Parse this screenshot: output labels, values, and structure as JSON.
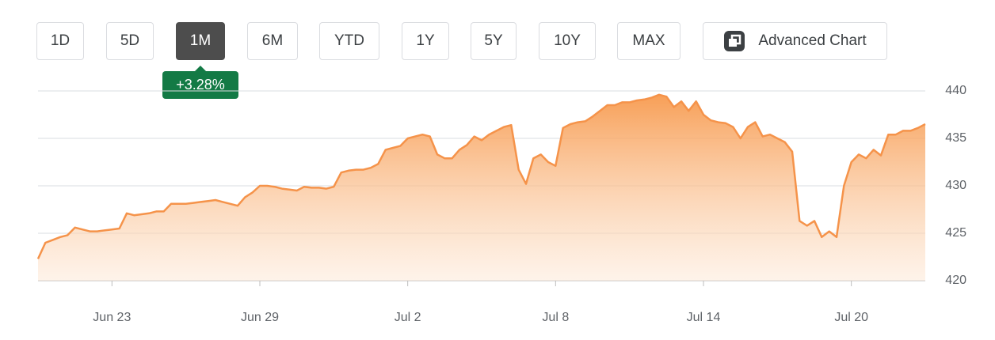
{
  "controls": {
    "ranges": [
      "1D",
      "5D",
      "1M",
      "6M",
      "YTD",
      "1Y",
      "5Y",
      "10Y",
      "MAX"
    ],
    "selected_index": 2,
    "advanced_label": "Advanced Chart"
  },
  "change_badge": "+3.28%",
  "chart_data": {
    "type": "area",
    "color": "#f5934a",
    "x": [
      0,
      1,
      2,
      3,
      4,
      5,
      6,
      7,
      8,
      9,
      10,
      11,
      12,
      13,
      14,
      15,
      16,
      17,
      18,
      19,
      20,
      21,
      22,
      23,
      24,
      25,
      26,
      27,
      28,
      29,
      30,
      31,
      32,
      33,
      34,
      35,
      36,
      37,
      38,
      39,
      40,
      41,
      42,
      43,
      44,
      45,
      46,
      47,
      48,
      49,
      50,
      51,
      52,
      53,
      54,
      55,
      56,
      57,
      58,
      59,
      60,
      61,
      62,
      63,
      64,
      65,
      66,
      67,
      68,
      69,
      70,
      71,
      72,
      73,
      74,
      75,
      76,
      77,
      78,
      79,
      80,
      81,
      82,
      83,
      84,
      85,
      86,
      87,
      88,
      89,
      90,
      91,
      92,
      93,
      94,
      95,
      96,
      97,
      98,
      99,
      100,
      101,
      102,
      103,
      104,
      105,
      106,
      107,
      108,
      109,
      110,
      111,
      112,
      113,
      114,
      115,
      116,
      117,
      118,
      119,
      120
    ],
    "values": [
      422.3,
      424.0,
      424.3,
      424.6,
      424.8,
      425.6,
      425.4,
      425.2,
      425.2,
      425.3,
      425.4,
      425.5,
      427.1,
      426.9,
      427.0,
      427.1,
      427.3,
      427.3,
      428.1,
      428.1,
      428.1,
      428.2,
      428.3,
      428.4,
      428.5,
      428.3,
      428.1,
      427.9,
      428.8,
      429.3,
      430.0,
      430.0,
      429.9,
      429.7,
      429.6,
      429.5,
      429.9,
      429.8,
      429.8,
      429.7,
      429.9,
      431.4,
      431.6,
      431.7,
      431.7,
      431.9,
      432.3,
      433.8,
      434.0,
      434.2,
      435.0,
      435.2,
      435.4,
      435.2,
      433.3,
      432.9,
      432.9,
      433.8,
      434.3,
      435.2,
      434.8,
      435.4,
      435.8,
      436.2,
      436.4,
      431.7,
      430.2,
      432.9,
      433.3,
      432.5,
      432.1,
      436.1,
      436.5,
      436.7,
      436.8,
      437.3,
      437.9,
      438.5,
      438.5,
      438.8,
      438.8,
      439.0,
      439.1,
      439.3,
      439.6,
      439.4,
      438.3,
      438.9,
      437.9,
      438.9,
      437.5,
      436.9,
      436.7,
      436.6,
      436.2,
      435.0,
      436.2,
      436.7,
      435.2,
      435.4,
      435.0,
      434.6,
      433.6,
      426.3,
      425.8,
      426.3,
      424.6,
      425.2,
      424.6,
      430.0,
      432.5,
      433.3,
      432.9,
      433.8,
      433.2,
      435.4,
      435.4,
      435.8,
      435.8,
      436.1,
      436.5
    ],
    "xlim": [
      0,
      120
    ],
    "xticks": [
      {
        "value": 10,
        "label": "Jun 23"
      },
      {
        "value": 30,
        "label": "Jun 29"
      },
      {
        "value": 50,
        "label": "Jul 2"
      },
      {
        "value": 70,
        "label": "Jul 8"
      },
      {
        "value": 90,
        "label": "Jul 14"
      },
      {
        "value": 110,
        "label": "Jul 20"
      }
    ],
    "ylim": [
      420,
      440
    ],
    "yticks": [
      420,
      425,
      430,
      435,
      440
    ],
    "grid": true
  }
}
